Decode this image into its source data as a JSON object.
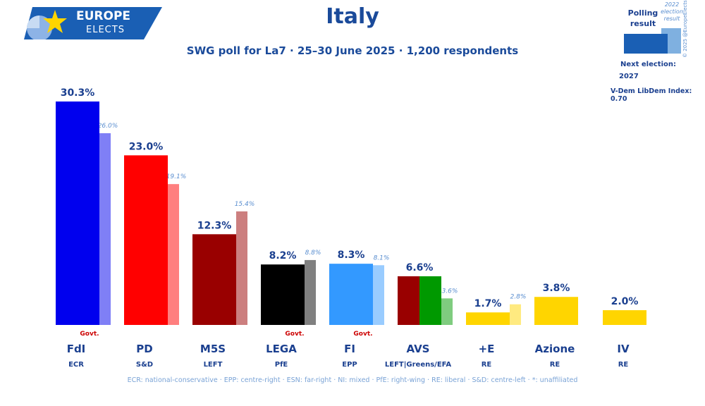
{
  "logo": {
    "line1": "EUROPE",
    "line2": "ELECTS"
  },
  "title": "Italy",
  "subtitle": "SWG poll for La7 · 25–30 June 2025 · 1,200 respondents",
  "legend": {
    "polling_result": "Polling result",
    "previous_result": "2022 election result",
    "next_election_label": "Next election:",
    "next_election_year": "2027",
    "vdem": "V-Dem LibDem Index: 0.70",
    "copyright": "© 2025 @EuropeElects"
  },
  "footer": "ECR: national-conservative · EPP: centre-right · ESN: far-right · NI: mixed · PfE: right-wing · RE: liberal · S&D: centre-left · *: unaffiliated",
  "chart_data": {
    "type": "bar",
    "ylim": [
      0,
      32
    ],
    "govt_label": "Govt.",
    "categories": [
      "FdI",
      "PD",
      "M5S",
      "LEGA",
      "FI",
      "AVS",
      "+E",
      "Azione",
      "IV"
    ],
    "groups": [
      "ECR",
      "S&D",
      "LEFT",
      "PfE",
      "EPP",
      "LEFT|Greens/EFA",
      "RE",
      "RE",
      "RE"
    ],
    "government": [
      true,
      false,
      false,
      true,
      true,
      false,
      false,
      false,
      false
    ],
    "series": [
      {
        "values": [
          30.3,
          23.0,
          12.3,
          8.2,
          8.3,
          6.6,
          1.7,
          3.8,
          2.0
        ],
        "labels": [
          "30.3%",
          "23.0%",
          "12.3%",
          "8.2%",
          "8.3%",
          "6.6%",
          "1.7%",
          "3.8%",
          "2.0%"
        ]
      },
      {
        "values": [
          26.0,
          19.1,
          15.4,
          8.8,
          8.1,
          3.6,
          2.8,
          null,
          null
        ],
        "labels": [
          "26.0%",
          "19.1%",
          "15.4%",
          "8.8%",
          "8.1%",
          "3.6%",
          "2.8%",
          "",
          ""
        ]
      }
    ],
    "colors": {
      "main": [
        "#0000ee",
        "#ff0000",
        "#990000",
        "#000000",
        "#3399ff",
        [
          "#990000",
          "#009900"
        ],
        "#ffd500",
        "#ffd500",
        "#ffd500"
      ],
      "previous": [
        "#7f7ff6",
        "#ff7f7f",
        "#cc7f7f",
        "#808080",
        "#99ccff",
        "#7fcc7f",
        "#ffea80",
        "",
        ""
      ]
    },
    "value_label_color": "#1a3f8f",
    "previous_label_color": "#5b8fd0",
    "govt_label_color": "#cc0000"
  }
}
